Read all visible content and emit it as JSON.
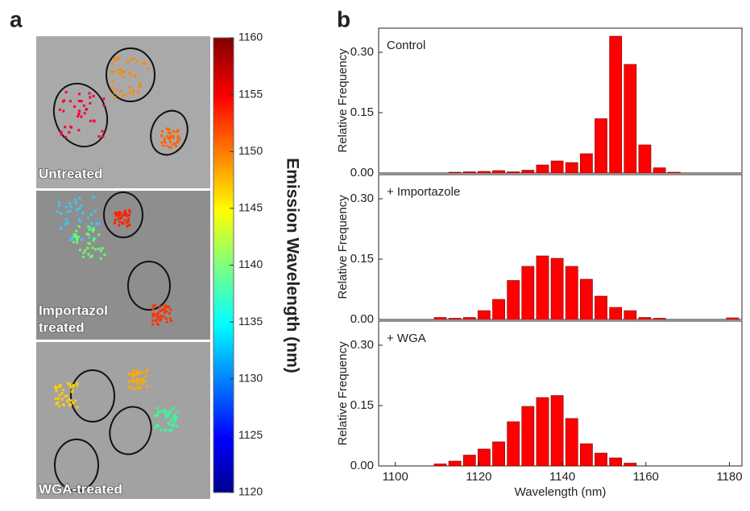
{
  "panel_labels": [
    "a",
    "b"
  ],
  "images": [
    {
      "label": "Untreated"
    },
    {
      "label": [
        "Importazol",
        "treated"
      ]
    },
    {
      "label": "WGA-treated"
    }
  ],
  "chart_data": [
    {
      "type": "colorbar",
      "title": "Emission Wavelength (nm)",
      "ylim": [
        1120,
        1160
      ],
      "yticks": [
        1120,
        1125,
        1130,
        1135,
        1140,
        1145,
        1150,
        1155,
        1160
      ]
    },
    {
      "type": "histogram",
      "annotation": "Control",
      "ylabel": "Relative Frequency",
      "color": "#ff0000",
      "bins": [
        1109,
        1112.5,
        1116,
        1119.5,
        1123,
        1126.5,
        1130,
        1133.5,
        1137,
        1140.5,
        1144,
        1147.5,
        1151,
        1154.5,
        1158,
        1161.5,
        1165,
        1168.5,
        1172,
        1175.5,
        1179,
        1182.5
      ],
      "values": [
        0,
        0.002,
        0.003,
        0.004,
        0.006,
        0.003,
        0.007,
        0.02,
        0.03,
        0.026,
        0.048,
        0.135,
        0.34,
        0.27,
        0.07,
        0.013,
        0.002,
        0,
        0,
        0,
        0
      ],
      "xlim": [
        1096,
        1183
      ],
      "ylim": [
        0,
        0.36
      ],
      "yticks": [
        {
          "value": 0,
          "label": "0.00"
        },
        {
          "value": 0.15,
          "label": "0.15"
        },
        {
          "value": 0.3,
          "label": "0.30"
        }
      ]
    },
    {
      "type": "histogram",
      "annotation": "+ Importazole",
      "ylabel": "Relative Frequency",
      "color": "#ff0000",
      "bins": [
        1109,
        1112.5,
        1116,
        1119.5,
        1123,
        1126.5,
        1130,
        1133.5,
        1137,
        1140.5,
        1144,
        1147.5,
        1151,
        1154.5,
        1158,
        1161.5,
        1165,
        1168.5,
        1172,
        1175.5,
        1179,
        1182.5
      ],
      "values": [
        0.005,
        0.003,
        0.005,
        0.022,
        0.05,
        0.097,
        0.132,
        0.158,
        0.152,
        0.132,
        0.1,
        0.058,
        0.03,
        0.022,
        0.005,
        0.003,
        0,
        0,
        0,
        0,
        0.004
      ],
      "xlim": [
        1096,
        1183
      ],
      "ylim": [
        0,
        0.36
      ],
      "yticks": [
        {
          "value": 0,
          "label": "0.00"
        },
        {
          "value": 0.15,
          "label": "0.15"
        },
        {
          "value": 0.3,
          "label": "0.30"
        }
      ]
    },
    {
      "type": "histogram",
      "annotation": "+ WGA",
      "ylabel": "Relative Frequency",
      "xlabel": "Wavelength (nm)",
      "color": "#ff0000",
      "bins": [
        1109,
        1112.5,
        1116,
        1119.5,
        1123,
        1126.5,
        1130,
        1133.5,
        1137,
        1140.5,
        1144,
        1147.5,
        1151,
        1154.5,
        1158,
        1161.5,
        1165,
        1168.5,
        1172,
        1175.5,
        1179,
        1182.5
      ],
      "values": [
        0.005,
        0.012,
        0.027,
        0.042,
        0.06,
        0.11,
        0.148,
        0.17,
        0.175,
        0.118,
        0.055,
        0.032,
        0.02,
        0.007,
        0,
        0,
        0,
        0,
        0,
        0,
        0
      ],
      "xlim": [
        1096,
        1183
      ],
      "ylim": [
        0,
        0.36
      ],
      "yticks": [
        {
          "value": 0,
          "label": "0.00"
        },
        {
          "value": 0.15,
          "label": "0.15"
        },
        {
          "value": 0.3,
          "label": "0.30"
        }
      ],
      "xticks": [
        1100,
        1120,
        1140,
        1160,
        1180
      ]
    }
  ]
}
